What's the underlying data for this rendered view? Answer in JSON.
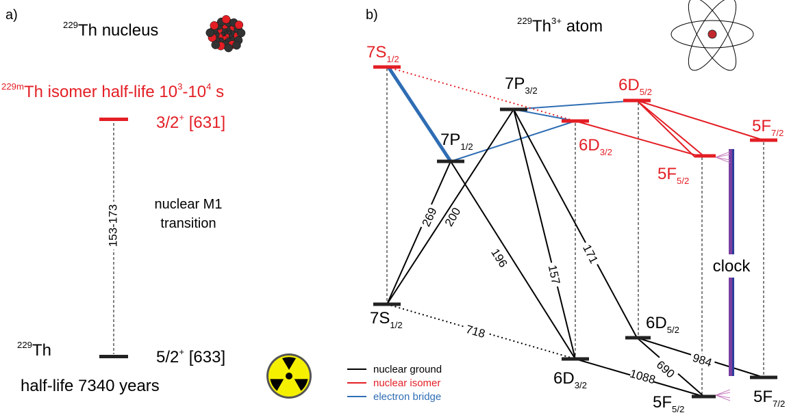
{
  "panel_a": {
    "label": "a)",
    "title": {
      "sup": "229",
      "text": "Th nucleus"
    },
    "isomer": {
      "sup": "229m",
      "text": "Th isomer half-life 10",
      "exp1": "3",
      "mid": "-10",
      "exp2": "4",
      "end": " s"
    },
    "upper_level": {
      "text": "3/2",
      "sup": "+",
      "rest": " [631]"
    },
    "transition_energy": "153-173",
    "transition_label": [
      "nuclear M1",
      "transition"
    ],
    "ground": {
      "sup": "229",
      "text": "Th"
    },
    "ground_level": {
      "text": "5/2",
      "sup": "+",
      "rest": " [633]"
    },
    "half_life": "half-life 7340 years"
  },
  "panel_b": {
    "label": "b)",
    "title": {
      "sup1": "229",
      "text": "Th",
      "sup2": "3+",
      "end": " atom"
    },
    "levels": [
      {
        "name": "7S",
        "sub": "1/2"
      },
      {
        "name": "7P",
        "sub": "3/2"
      },
      {
        "name": "7P",
        "sub": "1/2"
      },
      {
        "name": "6D",
        "sub": "5/2"
      },
      {
        "name": "6D",
        "sub": "3/2"
      },
      {
        "name": "5F",
        "sub": "7/2"
      },
      {
        "name": "5F",
        "sub": "5/2"
      },
      {
        "name": "7S",
        "sub": "1/2"
      },
      {
        "name": "6D",
        "sub": "5/2"
      },
      {
        "name": "6D",
        "sub": "3/2"
      },
      {
        "name": "5F",
        "sub": "5/2"
      },
      {
        "name": "5F",
        "sub": "7/2"
      }
    ],
    "transitions": [
      269,
      200,
      196,
      157,
      171,
      718,
      1088,
      690,
      984
    ],
    "clock": "clock",
    "legend": [
      {
        "label": "nuclear ground",
        "color": "#000000"
      },
      {
        "label": "nuclear isomer",
        "color": "#e31e24"
      },
      {
        "label": "electron bridge",
        "color": "#2e6db4"
      }
    ]
  }
}
